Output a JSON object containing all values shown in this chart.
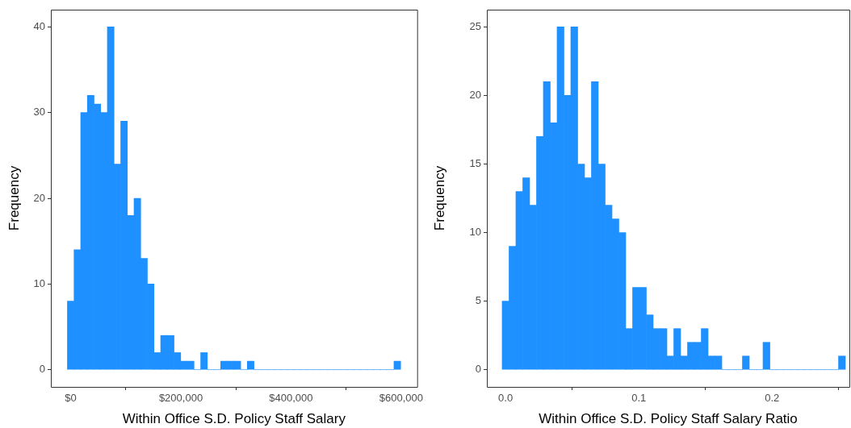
{
  "chart_data": [
    {
      "type": "histogram",
      "xlabel": "Within Office S.D. Policy Staff Salary",
      "ylabel": "Frequency",
      "color": "#1e90ff",
      "grid": false,
      "bins": [
        -6000,
        6100,
        18200,
        30300,
        42400,
        54500,
        66600,
        78700,
        90800,
        102900,
        115000,
        127100,
        139200,
        151300,
        163400,
        175500,
        187600,
        199700,
        211800,
        223900,
        236000,
        248100,
        260200,
        272300,
        284400,
        296500,
        308600,
        320700,
        332800,
        344900,
        357000,
        369100,
        381200,
        393300,
        405400,
        417500,
        429600,
        441700,
        453800,
        465900,
        478000,
        490100,
        502200,
        514300,
        526400,
        538500,
        550600,
        562700,
        574800,
        586900,
        599000
      ],
      "values": [
        8,
        14,
        30,
        32,
        31,
        30,
        40,
        24,
        29,
        18,
        20,
        13,
        10,
        2,
        4,
        4,
        2,
        1,
        1,
        0,
        2,
        0,
        0,
        1,
        1,
        1,
        0,
        1,
        0,
        0,
        0,
        0,
        0,
        0,
        0,
        0,
        0,
        0,
        0,
        0,
        0,
        0,
        0,
        0,
        0,
        0,
        0,
        0,
        0,
        1
      ],
      "xlim": [
        -36000,
        629000
      ],
      "ylim": [
        -2,
        42
      ],
      "xticks": [
        {
          "value": 0,
          "label": "$0"
        },
        {
          "value": 200000,
          "label": "$200,000"
        },
        {
          "value": 400000,
          "label": "$400,000"
        },
        {
          "value": 600000,
          "label": "$600,000"
        }
      ],
      "yticks": [
        0,
        10,
        20,
        30,
        40
      ]
    },
    {
      "type": "histogram",
      "xlabel": "Within Office S.D. Policy Staff Salary Ratio",
      "ylabel": "Frequency",
      "color": "#1e90ff",
      "grid": false,
      "bins": [
        -0.0025,
        0.00265,
        0.0078,
        0.01295,
        0.0181,
        0.02325,
        0.0284,
        0.03355,
        0.0387,
        0.04385,
        0.049,
        0.05415,
        0.0593,
        0.06445,
        0.0696,
        0.07475,
        0.0799,
        0.08505,
        0.0902,
        0.09535,
        0.1005,
        0.10565,
        0.1108,
        0.11595,
        0.1211,
        0.12625,
        0.1314,
        0.13655,
        0.1417,
        0.14685,
        0.152,
        0.15715,
        0.1623,
        0.16745,
        0.1726,
        0.17775,
        0.1829,
        0.18805,
        0.1932,
        0.19835,
        0.2035,
        0.20865,
        0.2138,
        0.21895,
        0.2241,
        0.22925,
        0.2344,
        0.23955,
        0.2447,
        0.24985,
        0.255
      ],
      "values": [
        5,
        9,
        13,
        14,
        12,
        17,
        21,
        18,
        25,
        20,
        25,
        15,
        14,
        21,
        15,
        12,
        11,
        10,
        3,
        6,
        6,
        4,
        3,
        3,
        1,
        3,
        1,
        2,
        2,
        3,
        1,
        1,
        0,
        0,
        0,
        1,
        0,
        0,
        2,
        0,
        0,
        0,
        0,
        0,
        0,
        0,
        0,
        0,
        0,
        1
      ],
      "xlim": [
        -0.014,
        0.258
      ],
      "ylim": [
        -1.25,
        26.25
      ],
      "xticks": [
        {
          "value": 0,
          "label": "0.0"
        },
        0.1,
        0.2
      ],
      "yticks": [
        0,
        5,
        10,
        15,
        20,
        25
      ]
    }
  ]
}
